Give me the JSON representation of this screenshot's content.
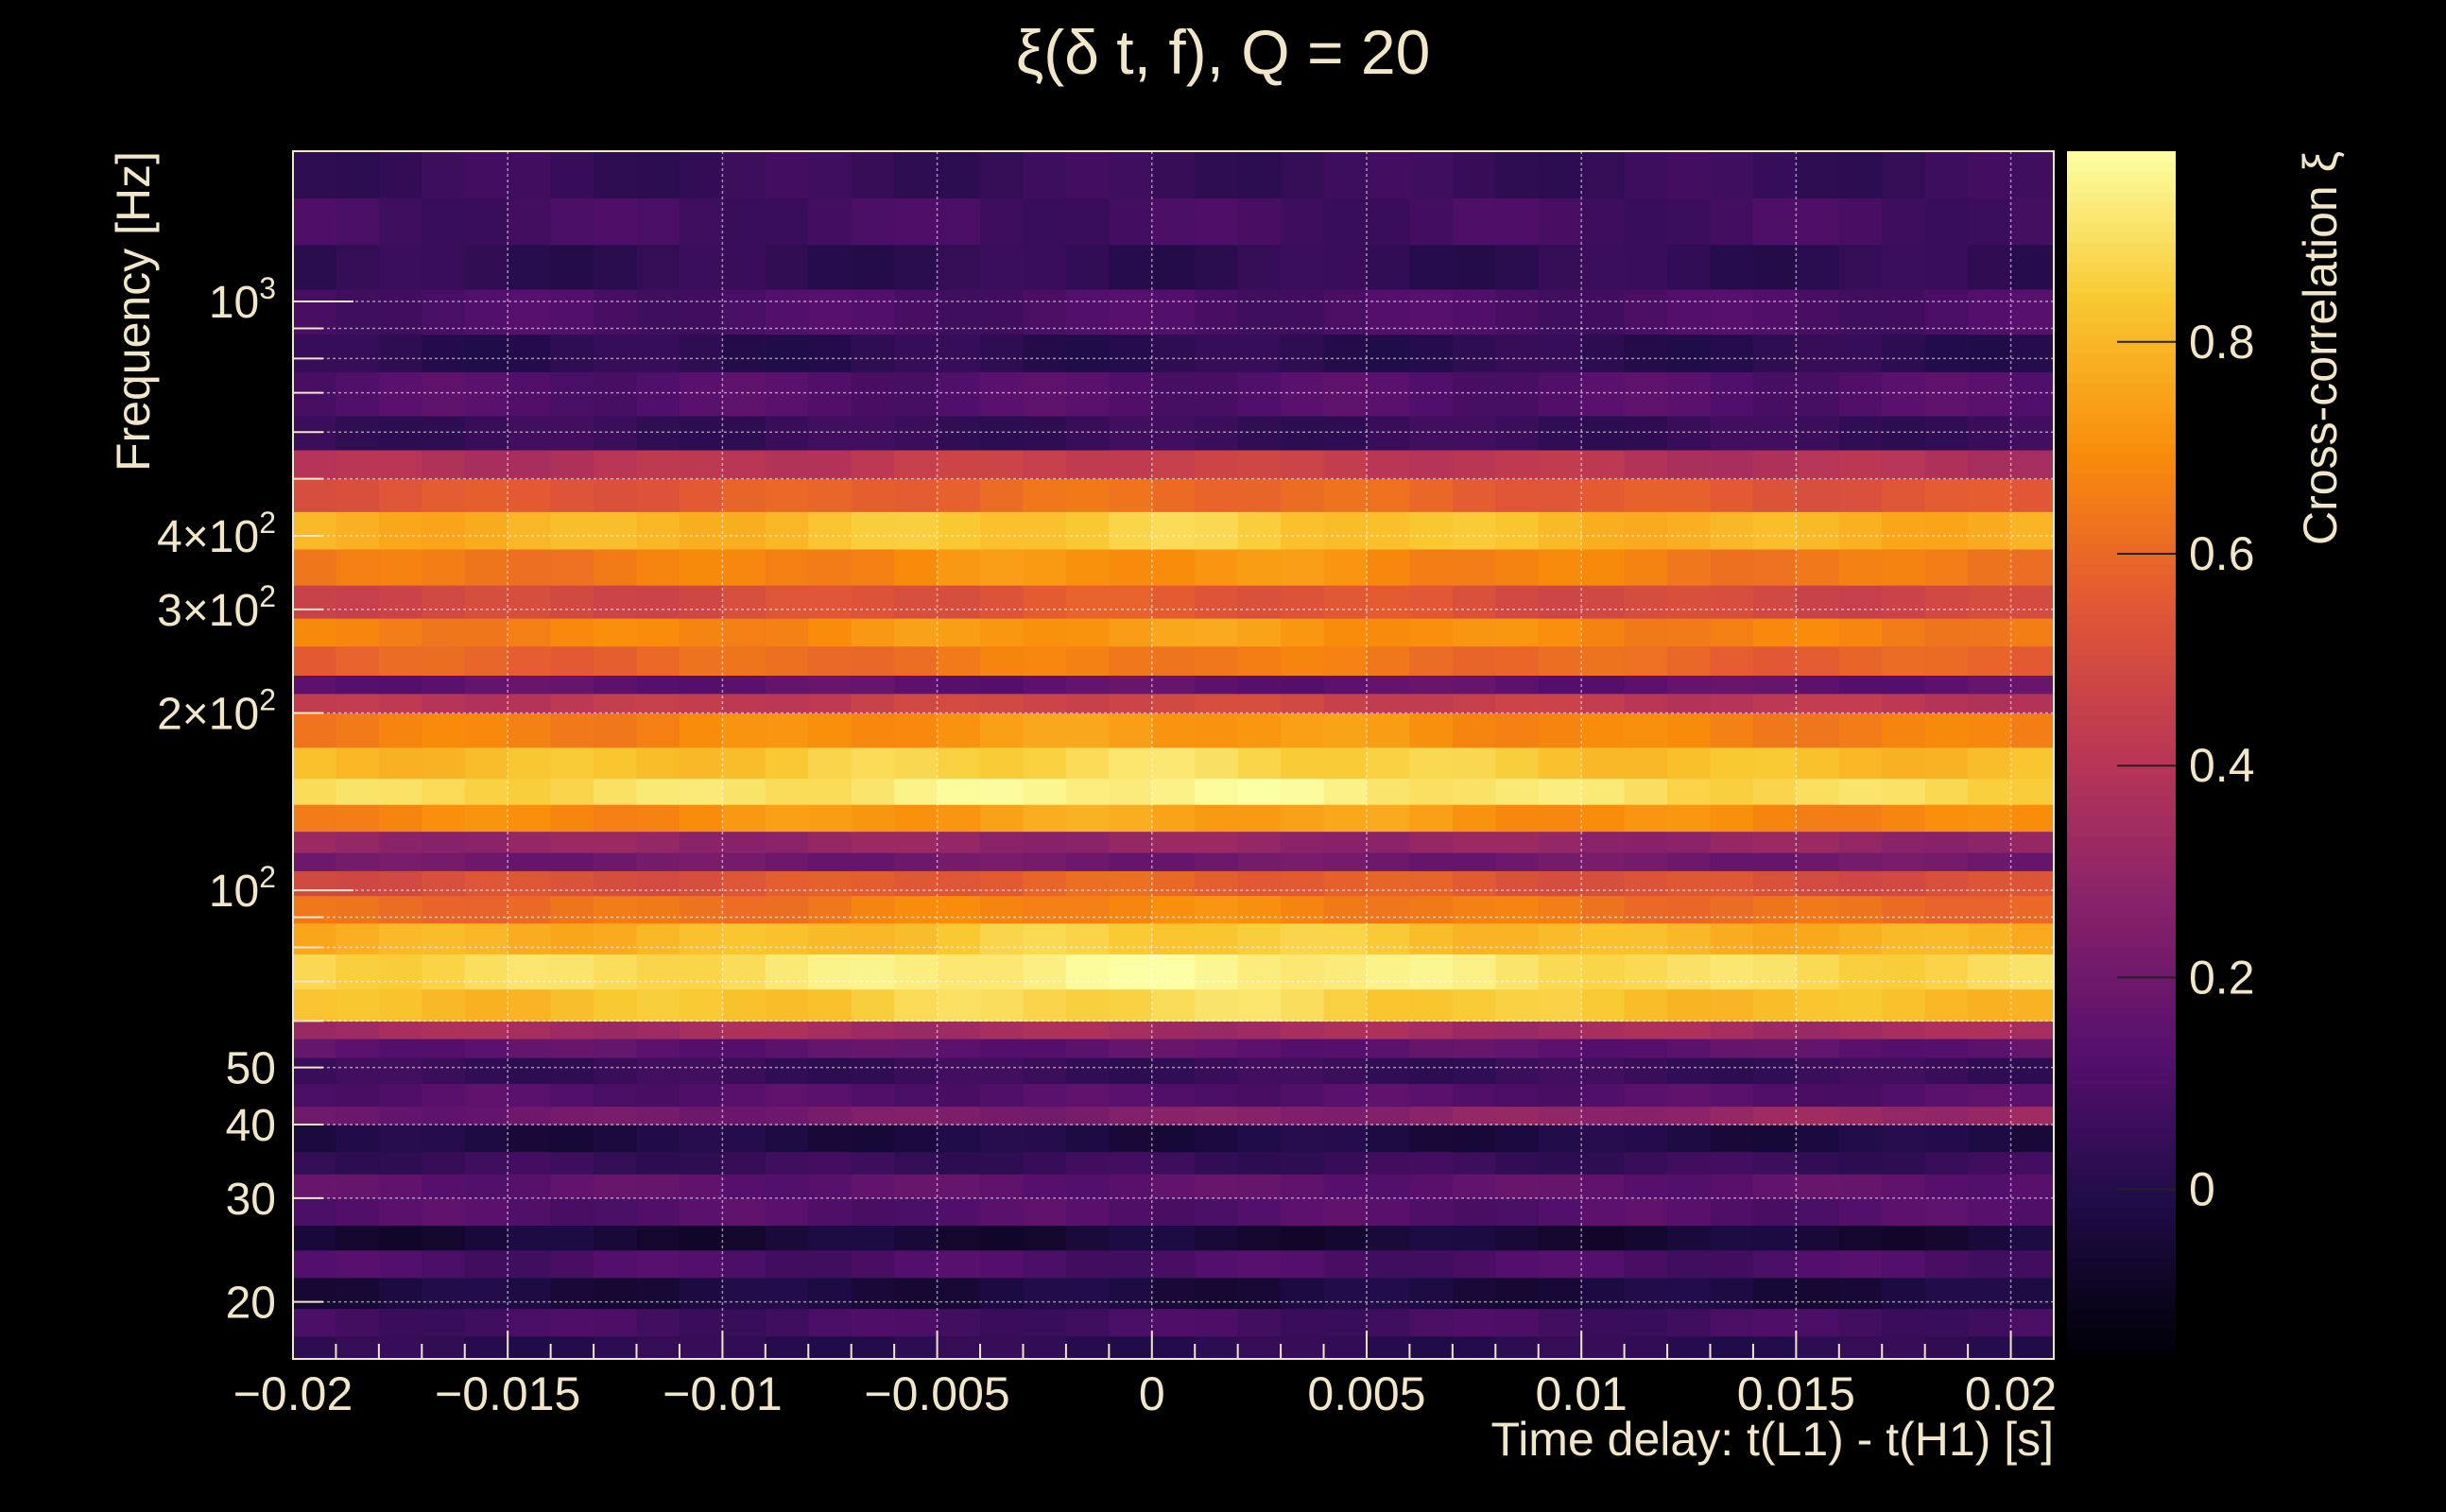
{
  "chart_data": {
    "type": "heatmap",
    "title": "ξ(δ t, f), Q = 20",
    "xlabel": "Time delay: t(L1) - t(H1) [s]",
    "ylabel": "Frequency [Hz]",
    "colorbar_label": "Cross-correlation ξ",
    "xlim": [
      -0.02,
      0.021
    ],
    "ylim": [
      16,
      1800
    ],
    "yscale": "log",
    "grid": true,
    "colormap": "inferno",
    "colorbar_range": [
      -0.16,
      0.98
    ],
    "x_ticks": [
      {
        "value": -0.02,
        "label": "−0.02"
      },
      {
        "value": -0.015,
        "label": "−0.015"
      },
      {
        "value": -0.01,
        "label": "−0.01"
      },
      {
        "value": -0.005,
        "label": "−0.005"
      },
      {
        "value": 0,
        "label": "0"
      },
      {
        "value": 0.005,
        "label": "0.005"
      },
      {
        "value": 0.01,
        "label": "0.01"
      },
      {
        "value": 0.015,
        "label": "0.015"
      },
      {
        "value": 0.02,
        "label": "0.02"
      }
    ],
    "y_ticks": [
      {
        "value": 20,
        "label": "20"
      },
      {
        "value": 30,
        "label": "30"
      },
      {
        "value": 40,
        "label": "40"
      },
      {
        "value": 50,
        "label": "50"
      },
      {
        "value": 100,
        "label": "10²"
      },
      {
        "value": 200,
        "label": "2×10²"
      },
      {
        "value": 300,
        "label": "3×10²"
      },
      {
        "value": 400,
        "label": "4×10²"
      },
      {
        "value": 1000,
        "label": "10³"
      }
    ],
    "colorbar_ticks": [
      {
        "value": 0,
        "label": "0"
      },
      {
        "value": 0.2,
        "label": "0.2"
      },
      {
        "value": 0.4,
        "label": "0.4"
      },
      {
        "value": 0.6,
        "label": "0.6"
      },
      {
        "value": 0.8,
        "label": "0.8"
      }
    ],
    "frequency_bands": [
      {
        "f": [
          16,
          17.5
        ],
        "value": 0.02,
        "slope": 0
      },
      {
        "f": [
          17.5,
          19.5
        ],
        "value": 0.08,
        "slope": 0
      },
      {
        "f": [
          19.5,
          22
        ],
        "value": -0.03,
        "slope": 0
      },
      {
        "f": [
          22,
          24.5
        ],
        "value": 0.1,
        "slope": 0
      },
      {
        "f": [
          24.5,
          27
        ],
        "value": -0.05,
        "slope": 0
      },
      {
        "f": [
          27,
          30
        ],
        "value": 0.12,
        "slope": 0
      },
      {
        "f": [
          30,
          33
        ],
        "value": 0.15,
        "slope": 0
      },
      {
        "f": [
          33,
          36
        ],
        "value": 0.05,
        "slope": 0
      },
      {
        "f": [
          36,
          40
        ],
        "value": -0.02,
        "slope": 0
      },
      {
        "f": [
          40,
          43
        ],
        "value": 0.25,
        "slope": 4
      },
      {
        "f": [
          43,
          47
        ],
        "value": 0.12,
        "slope": 0
      },
      {
        "f": [
          47,
          52
        ],
        "value": 0.05,
        "slope": 0
      },
      {
        "f": [
          52,
          56
        ],
        "value": 0.15,
        "slope": 0
      },
      {
        "f": [
          56,
          60
        ],
        "value": 0.35,
        "slope": 0
      },
      {
        "f": [
          60,
          68
        ],
        "value": 0.85,
        "slope": 0
      },
      {
        "f": [
          68,
          78
        ],
        "value": 0.92,
        "slope": 0
      },
      {
        "f": [
          78,
          88
        ],
        "value": 0.82,
        "slope": 0
      },
      {
        "f": [
          88,
          98
        ],
        "value": 0.65,
        "slope": 0
      },
      {
        "f": [
          98,
          108
        ],
        "value": 0.55,
        "slope": 0
      },
      {
        "f": [
          108,
          116
        ],
        "value": 0.2,
        "slope": 0
      },
      {
        "f": [
          116,
          126
        ],
        "value": 0.3,
        "slope": 0
      },
      {
        "f": [
          126,
          140
        ],
        "value": 0.72,
        "slope": 0
      },
      {
        "f": [
          140,
          155
        ],
        "value": 0.92,
        "slope": 0
      },
      {
        "f": [
          155,
          175
        ],
        "value": 0.85,
        "slope": 0
      },
      {
        "f": [
          175,
          200
        ],
        "value": 0.7,
        "slope": 0
      },
      {
        "f": [
          200,
          216
        ],
        "value": 0.45,
        "slope": 0
      },
      {
        "f": [
          216,
          232
        ],
        "value": 0.15,
        "slope": 0
      },
      {
        "f": [
          232,
          260
        ],
        "value": 0.62,
        "slope": 0
      },
      {
        "f": [
          260,
          290
        ],
        "value": 0.7,
        "slope": 0
      },
      {
        "f": [
          290,
          330
        ],
        "value": 0.52,
        "slope": 0
      },
      {
        "f": [
          330,
          380
        ],
        "value": 0.68,
        "slope": 0
      },
      {
        "f": [
          380,
          440
        ],
        "value": 0.82,
        "slope": 0
      },
      {
        "f": [
          440,
          500
        ],
        "value": 0.58,
        "slope": 0
      },
      {
        "f": [
          500,
          560
        ],
        "value": 0.42,
        "slope": 0
      },
      {
        "f": [
          560,
          640
        ],
        "value": 0.05,
        "slope": 0
      },
      {
        "f": [
          640,
          760
        ],
        "value": 0.12,
        "slope": 0
      },
      {
        "f": [
          760,
          880
        ],
        "value": 0.02,
        "slope": 0
      },
      {
        "f": [
          880,
          1050
        ],
        "value": 0.1,
        "slope": 0
      },
      {
        "f": [
          1050,
          1250
        ],
        "value": 0.03,
        "slope": 0
      },
      {
        "f": [
          1250,
          1500
        ],
        "value": 0.08,
        "slope": 0
      },
      {
        "f": [
          1500,
          1800
        ],
        "value": 0.05,
        "slope": 0
      }
    ]
  }
}
